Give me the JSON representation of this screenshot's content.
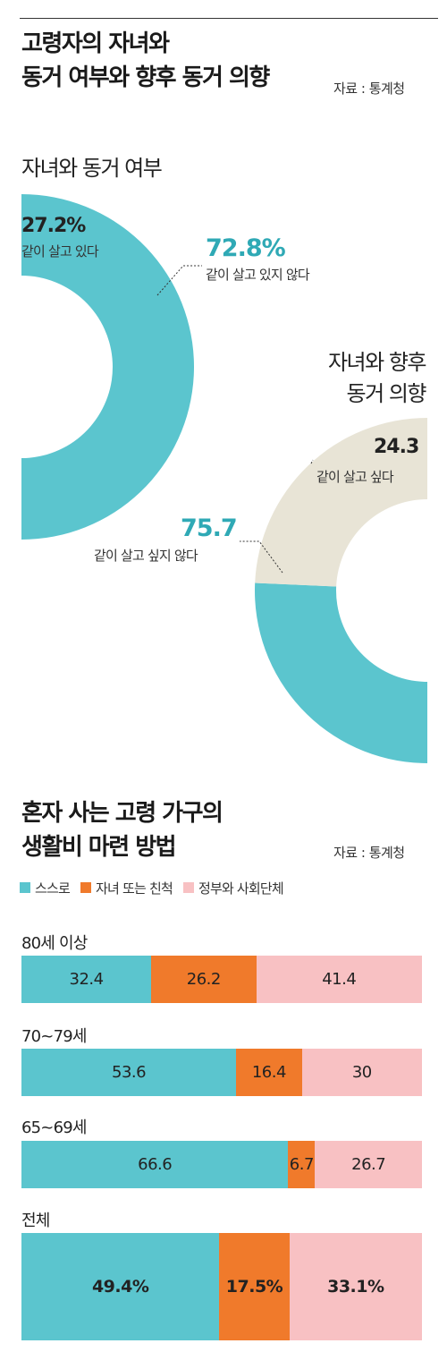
{
  "header": {
    "title_line1": "고령자의 자녀와",
    "title_line2": "동거 여부와 향후 동거 의향",
    "source": "자료 : 통계청"
  },
  "colors": {
    "teal": "#5bc5ce",
    "beige": "#e8e4d6",
    "orange": "#f07a2b",
    "pink": "#f8c1c3",
    "teal_text": "#2fa9b5"
  },
  "donut1": {
    "title": "자녀와 동거 여부",
    "slices": [
      {
        "value": 72.8,
        "pct_text": "72.8%",
        "label": "같이 살고 있지 않다",
        "color": "#5bc5ce"
      },
      {
        "value": 27.2,
        "pct_text": "27.2%",
        "label": "같이 살고 있다",
        "color": "#e8e4d6"
      }
    ]
  },
  "donut2": {
    "title_line1": "자녀와 향후",
    "title_line2": "동거 의향",
    "slices": [
      {
        "value": 75.7,
        "pct_text": "75.7",
        "label": "같이 살고 싶지 않다",
        "color": "#5bc5ce"
      },
      {
        "value": 24.3,
        "pct_text": "24.3",
        "label": "같이 살고 싶다",
        "color": "#e8e4d6"
      }
    ]
  },
  "section2": {
    "title_line1": "혼자 사는 고령 가구의",
    "title_line2": "생활비 마련 방법",
    "source": "자료 : 통계청"
  },
  "legend": [
    {
      "label": "스스로",
      "color": "#5bc5ce"
    },
    {
      "label": "자녀 또는 친척",
      "color": "#f07a2b"
    },
    {
      "label": "정부와 사회단체",
      "color": "#f8c1c3"
    }
  ],
  "chart_data": [
    {
      "type": "pie",
      "title": "자녀와 동거 여부",
      "categories": [
        "같이 살고 있지 않다",
        "같이 살고 있다"
      ],
      "values": [
        72.8,
        27.2
      ]
    },
    {
      "type": "pie",
      "title": "자녀와 향후 동거 의향",
      "categories": [
        "같이 살고 싶지 않다",
        "같이 살고 싶다"
      ],
      "values": [
        75.7,
        24.3
      ]
    },
    {
      "type": "bar",
      "title": "혼자 사는 고령 가구의 생활비 마련 방법",
      "stacked": true,
      "orientation": "horizontal",
      "categories": [
        "80세 이상",
        "70~79세",
        "65~69세",
        "전체"
      ],
      "series": [
        {
          "name": "스스로",
          "values": [
            32.4,
            53.6,
            66.6,
            49.4
          ],
          "labels": [
            "32.4",
            "53.6",
            "66.6",
            "49.4%"
          ]
        },
        {
          "name": "자녀 또는 친척",
          "values": [
            26.2,
            16.4,
            6.7,
            17.5
          ],
          "labels": [
            "26.2",
            "16.4",
            "6.7",
            "17.5%"
          ]
        },
        {
          "name": "정부와 사회단체",
          "values": [
            41.4,
            30,
            26.7,
            33.1
          ],
          "labels": [
            "41.4",
            "30",
            "26.7",
            "33.1%"
          ]
        }
      ]
    }
  ]
}
